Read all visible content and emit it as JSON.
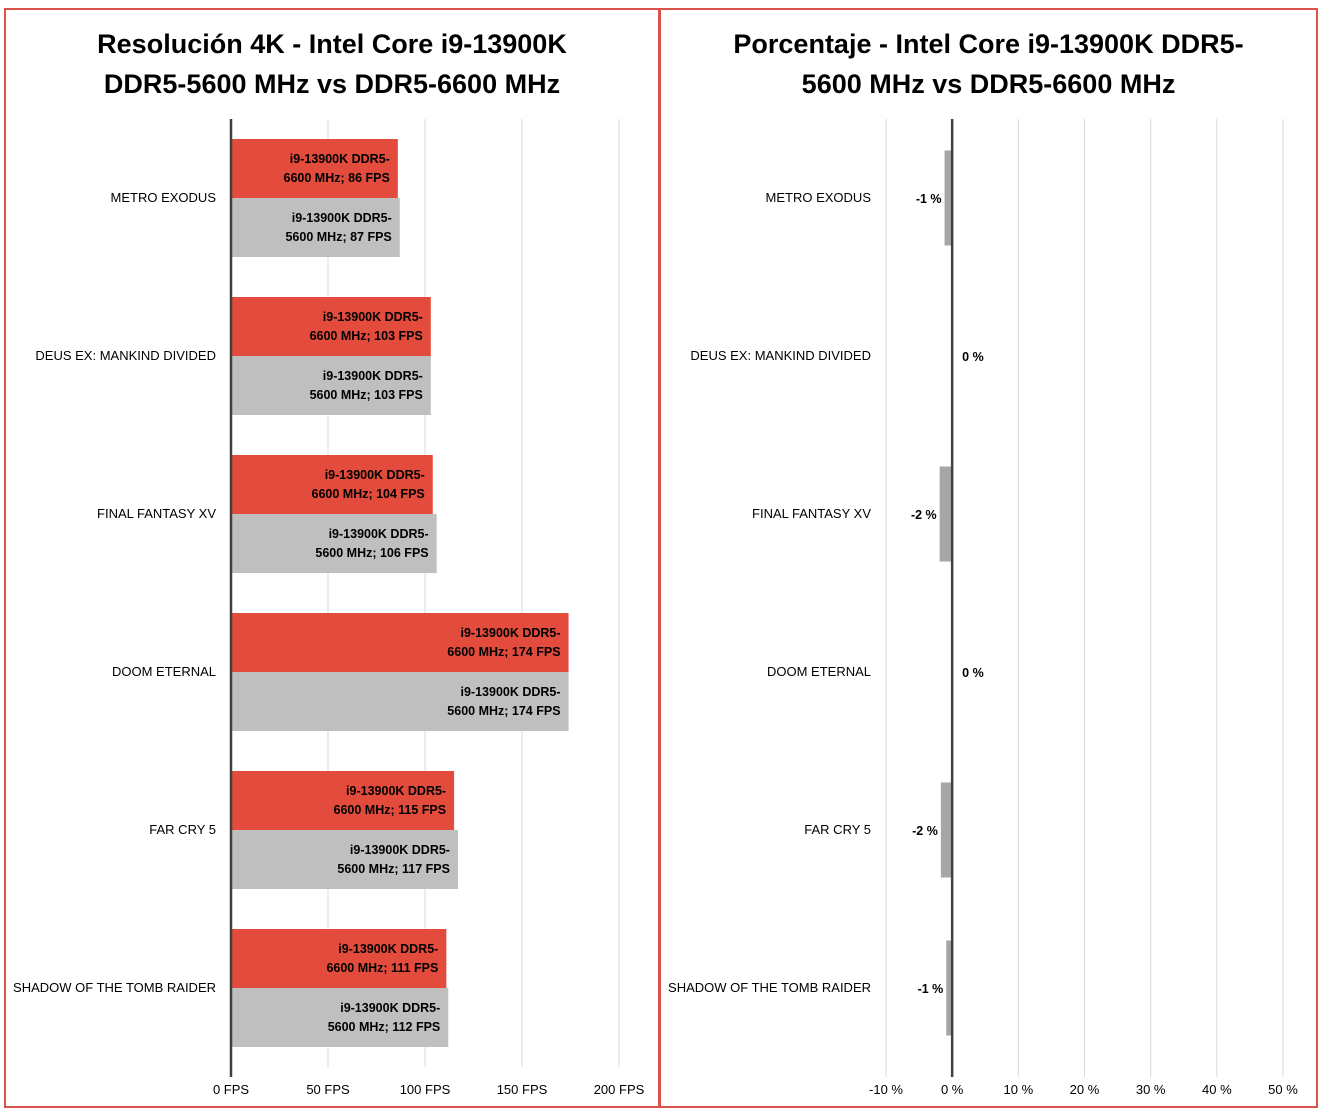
{
  "colors": {
    "ddr5_6600": "#e34b3c",
    "ddr5_5600": "#bfbfbf",
    "pct_bar": "#a6a6a6",
    "grid": "#d9d9d9",
    "axis": "#404040",
    "border": "#d9534a"
  },
  "chart_data": [
    {
      "type": "bar",
      "orientation": "horizontal",
      "title": "Resolución 4K - Intel Core i9-13900K DDR5-5600 MHz vs DDR5-6600 MHz",
      "title_lines": [
        "Resolución 4K - Intel Core i9-13900K",
        "DDR5-5600 MHz vs DDR5-6600 MHz"
      ],
      "categories": [
        "METRO EXODUS",
        "DEUS EX: MANKIND DIVIDED",
        "FINAL FANTASY XV",
        "DOOM ETERNAL",
        "FAR CRY 5",
        "SHADOW OF THE TOMB RAIDER"
      ],
      "series": [
        {
          "name": "i9-13900K DDR5-6600 MHz",
          "values": [
            86,
            103,
            104,
            174,
            115,
            111
          ],
          "labels": [
            [
              "i9-13900K DDR5-",
              "6600 MHz; 86 FPS"
            ],
            [
              "i9-13900K DDR5-",
              "6600 MHz; 103 FPS"
            ],
            [
              "i9-13900K DDR5-",
              "6600 MHz; 104 FPS"
            ],
            [
              "i9-13900K DDR5-",
              "6600 MHz; 174 FPS"
            ],
            [
              "i9-13900K DDR5-",
              "6600 MHz; 115 FPS"
            ],
            [
              "i9-13900K DDR5-",
              "6600 MHz; 111 FPS"
            ]
          ]
        },
        {
          "name": "i9-13900K DDR5-5600 MHz",
          "values": [
            87,
            103,
            106,
            174,
            117,
            112
          ],
          "labels": [
            [
              "i9-13900K DDR5-",
              "5600 MHz; 87 FPS"
            ],
            [
              "i9-13900K DDR5-",
              "5600 MHz; 103 FPS"
            ],
            [
              "i9-13900K DDR5-",
              "5600 MHz; 106 FPS"
            ],
            [
              "i9-13900K DDR5-",
              "5600 MHz; 174 FPS"
            ],
            [
              "i9-13900K DDR5-",
              "5600 MHz; 117 FPS"
            ],
            [
              "i9-13900K DDR5-",
              "5600 MHz; 112 FPS"
            ]
          ]
        }
      ],
      "xlim": [
        0,
        200
      ],
      "xticks": [
        0,
        50,
        100,
        150,
        200
      ],
      "xtick_labels": [
        "0 FPS",
        "50 FPS",
        "100 FPS",
        "150 FPS",
        "200 FPS"
      ],
      "grid": true
    },
    {
      "type": "bar",
      "orientation": "horizontal",
      "title": "Porcentaje - Intel Core i9-13900K DDR5-5600 MHz vs DDR5-6600 MHz",
      "title_lines": [
        "Porcentaje - Intel Core i9-13900K DDR5-",
        "5600 MHz vs DDR5-6600 MHz"
      ],
      "categories": [
        "METRO EXODUS",
        "DEUS EX: MANKIND DIVIDED",
        "FINAL FANTASY XV",
        "DOOM ETERNAL",
        "FAR CRY 5",
        "SHADOW OF THE TOMB RAIDER"
      ],
      "values": [
        -1.15,
        0,
        -1.89,
        0,
        -1.71,
        -0.89
      ],
      "value_labels": [
        "-1 %",
        "0 %",
        "-2 %",
        "0 %",
        "-2 %",
        "-1 %"
      ],
      "xlim": [
        -10,
        50
      ],
      "xticks": [
        -10,
        0,
        10,
        20,
        30,
        40,
        50
      ],
      "xtick_labels": [
        "-10 %",
        "0 %",
        "10 %",
        "20 %",
        "30 %",
        "40 %",
        "50 %"
      ],
      "grid": true
    }
  ]
}
